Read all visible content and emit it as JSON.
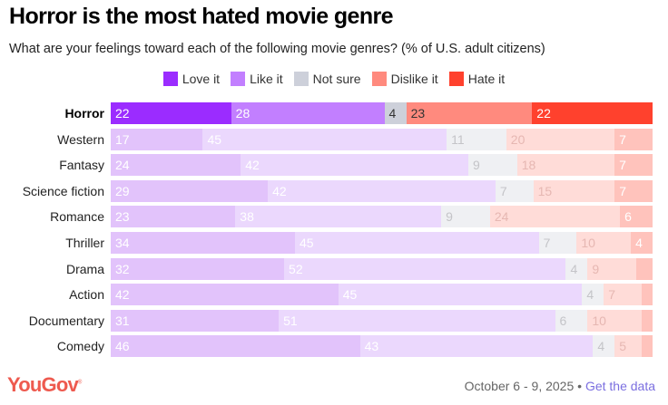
{
  "header": {
    "title": "Horror is the most hated movie genre",
    "subtitle": "What are your feelings toward each of the following movie genres? (% of U.S. adult citizens)"
  },
  "chart_data": {
    "type": "bar",
    "orientation": "horizontal",
    "stacked": true,
    "title": "Horror is the most hated movie genre",
    "subtitle": "What are your feelings toward each of the following movie genres? (% of U.S. adult citizens)",
    "xlabel": "",
    "ylabel": "",
    "xlim": [
      0,
      100
    ],
    "grid": false,
    "legend_position": "top-center",
    "highlighted_category": "Horror",
    "categories": [
      "Horror",
      "Western",
      "Fantasy",
      "Science fiction",
      "Romance",
      "Thriller",
      "Drama",
      "Action",
      "Documentary",
      "Comedy"
    ],
    "series": [
      {
        "name": "Love it",
        "color": "#9b2cff",
        "faded_color": "#e2c3fb",
        "values": [
          22,
          17,
          24,
          29,
          23,
          34,
          32,
          42,
          31,
          46
        ]
      },
      {
        "name": "Like it",
        "color": "#c27fff",
        "faded_color": "#ebd8fd",
        "values": [
          28,
          45,
          42,
          42,
          38,
          45,
          52,
          45,
          51,
          43
        ]
      },
      {
        "name": "Not sure",
        "color": "#cdd0da",
        "faded_color": "#eff0f3",
        "values": [
          4,
          11,
          9,
          7,
          9,
          7,
          4,
          4,
          6,
          4
        ]
      },
      {
        "name": "Dislike it",
        "color": "#ff8a7e",
        "faded_color": "#ffdcd8",
        "values": [
          23,
          20,
          18,
          15,
          24,
          10,
          9,
          7,
          10,
          5
        ]
      },
      {
        "name": "Hate it",
        "color": "#ff412d",
        "faded_color": "#ffc3bc",
        "values": [
          22,
          7,
          7,
          7,
          6,
          4,
          3,
          2,
          2,
          2
        ]
      }
    ],
    "labels_shown": [
      [
        true,
        true,
        true,
        true,
        true
      ],
      [
        true,
        true,
        true,
        true,
        true
      ],
      [
        true,
        true,
        true,
        true,
        true
      ],
      [
        true,
        true,
        true,
        true,
        true
      ],
      [
        true,
        true,
        true,
        true,
        true
      ],
      [
        true,
        true,
        true,
        true,
        true
      ],
      [
        true,
        true,
        true,
        true,
        false
      ],
      [
        true,
        true,
        true,
        true,
        false
      ],
      [
        true,
        true,
        true,
        true,
        false
      ],
      [
        true,
        true,
        true,
        true,
        false
      ]
    ]
  },
  "legend": [
    {
      "label": "Love it",
      "color": "#9b2cff"
    },
    {
      "label": "Like it",
      "color": "#c27fff"
    },
    {
      "label": "Not sure",
      "color": "#cdd0da"
    },
    {
      "label": "Dislike it",
      "color": "#ff8a7e"
    },
    {
      "label": "Hate it",
      "color": "#ff412d"
    }
  ],
  "footer": {
    "logo": "YouGov",
    "date": "October 6 - 9, 2025",
    "separator": "•",
    "link": "Get the data"
  }
}
